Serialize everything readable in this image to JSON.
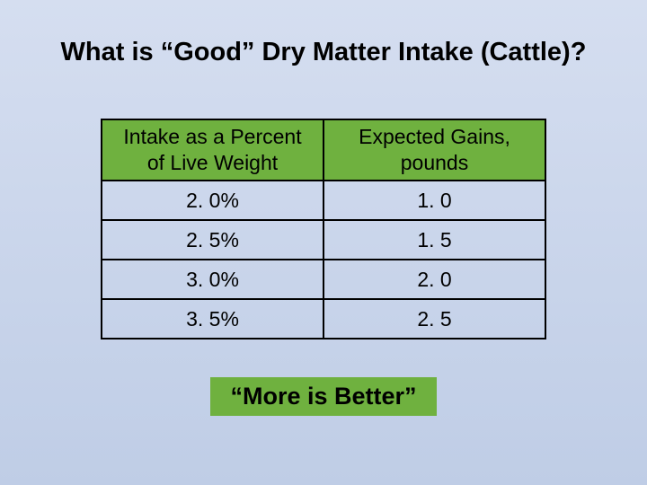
{
  "title": "What is “Good” Dry Matter Intake (Cattle)?",
  "table": {
    "header_bg": "#6fb13f",
    "row_bg": "#d5def0",
    "columns": [
      "Intake as a Percent of Live Weight",
      "Expected Gains, pounds"
    ],
    "rows": [
      [
        "2. 0%",
        "1. 0"
      ],
      [
        "2. 5%",
        "1. 5"
      ],
      [
        "3. 0%",
        "2. 0"
      ],
      [
        "3. 5%",
        "2. 5"
      ]
    ]
  },
  "callout": {
    "text": "“More is Better”",
    "bg": "#6fb13f"
  }
}
